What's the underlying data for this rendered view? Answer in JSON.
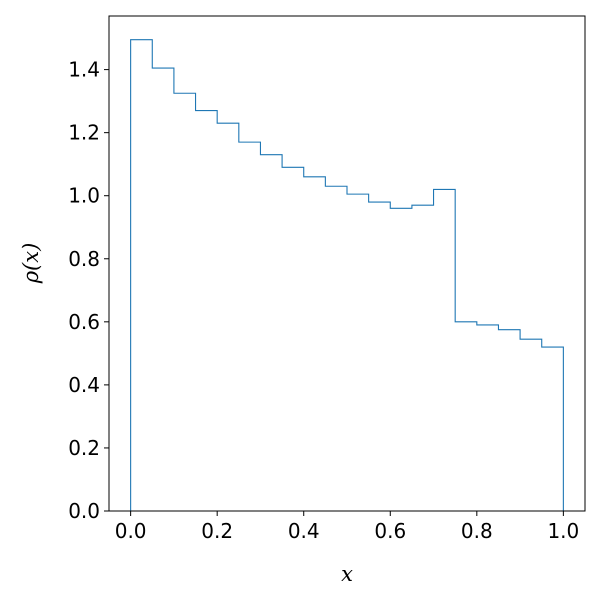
{
  "chart_data": {
    "type": "histogram-step",
    "xlabel": "x",
    "ylabel": "ρ(x)",
    "xlim": [
      -0.05,
      1.05
    ],
    "ylim": [
      0.0,
      1.57
    ],
    "x_ticks": [
      0.0,
      0.2,
      0.4,
      0.6,
      0.8,
      1.0
    ],
    "y_ticks": [
      0.0,
      0.2,
      0.4,
      0.6,
      0.8,
      1.0,
      1.2,
      1.4
    ],
    "x_tick_labels": [
      "0.0",
      "0.2",
      "0.4",
      "0.6",
      "0.8",
      "1.0"
    ],
    "y_tick_labels": [
      "0.0",
      "0.2",
      "0.4",
      "0.6",
      "0.8",
      "1.0",
      "1.2",
      "1.4"
    ],
    "bin_edges": [
      0.0,
      0.05,
      0.1,
      0.15,
      0.2,
      0.25,
      0.3,
      0.35,
      0.4,
      0.45,
      0.5,
      0.55,
      0.6,
      0.65,
      0.7,
      0.75,
      0.8,
      0.85,
      0.9,
      0.95,
      1.0
    ],
    "values": [
      1.495,
      1.405,
      1.325,
      1.27,
      1.23,
      1.17,
      1.13,
      1.09,
      1.06,
      1.03,
      1.005,
      0.98,
      0.96,
      0.97,
      1.02,
      0.6,
      0.59,
      0.575,
      0.545,
      0.52
    ],
    "line_color": "#1f77b4",
    "grid": false
  }
}
